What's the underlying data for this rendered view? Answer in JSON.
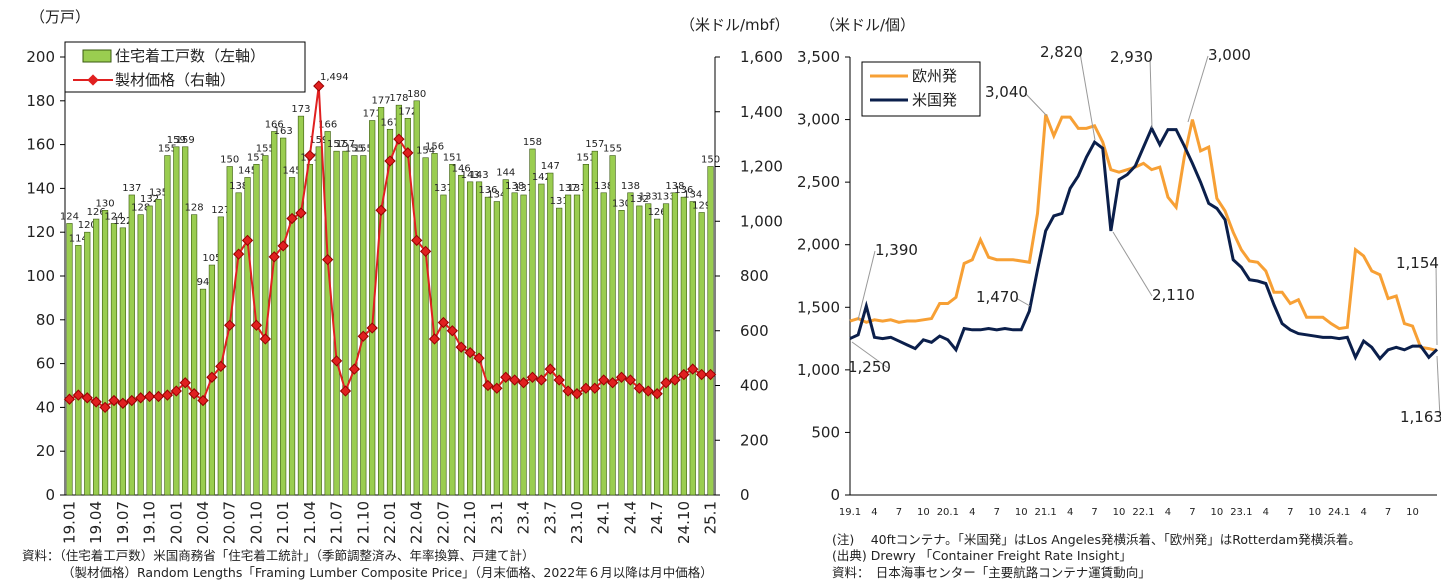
{
  "chart_data": [
    {
      "type": "bar",
      "y_label": "（万戸）",
      "y2_label": "（米ドル/mbf）",
      "categories": [
        "19.01",
        null,
        null,
        "19.04",
        null,
        null,
        "19.07",
        null,
        null,
        "19.10",
        null,
        null,
        "20.01",
        null,
        null,
        "20.04",
        null,
        null,
        "20.07",
        null,
        null,
        "20.10",
        null,
        null,
        "21.01",
        null,
        null,
        "21.04",
        null,
        null,
        "21.07",
        null,
        null,
        "21.10",
        null,
        null,
        "22.01",
        null,
        null,
        "22.04",
        null,
        null,
        "22.07",
        null,
        null,
        "22.10",
        null,
        null,
        "23.1",
        null,
        null,
        "23.4",
        null,
        null,
        "23.7",
        null,
        null,
        "23.10",
        null,
        null,
        "24.1",
        null,
        null,
        "24.4",
        null,
        null,
        "24.7",
        null,
        null,
        "24.10",
        null,
        null,
        "25.1"
      ],
      "series": [
        {
          "name": "住宅着工戸数（左軸）",
          "type": "bar",
          "color": "#9acd50",
          "data_labels": true,
          "values": [
            124,
            114,
            120,
            126,
            130,
            124,
            122,
            137,
            128,
            132,
            135,
            155,
            159,
            159,
            128,
            94,
            105,
            127,
            150,
            138,
            145,
            151,
            155,
            166,
            163,
            145,
            173,
            151,
            159,
            166,
            157,
            157,
            155,
            155,
            171,
            177,
            167,
            178,
            172,
            180,
            154,
            156,
            137,
            151,
            146,
            143,
            143,
            136,
            134,
            144,
            138,
            137,
            158,
            142,
            147,
            131,
            137,
            137,
            151,
            157,
            138,
            155,
            130,
            138,
            132,
            133,
            126,
            133,
            138,
            136,
            134,
            129,
            150
          ]
        },
        {
          "name": "製材価格（右軸）",
          "type": "line",
          "axis": "y2",
          "color": "#e02020",
          "values": [
            350,
            365,
            355,
            340,
            320,
            345,
            335,
            345,
            355,
            360,
            360,
            365,
            380,
            410,
            370,
            345,
            430,
            470,
            620,
            880,
            930,
            620,
            570,
            870,
            910,
            1010,
            1030,
            1240,
            1494,
            860,
            490,
            380,
            460,
            580,
            610,
            1040,
            1220,
            1300,
            1250,
            930,
            890,
            570,
            630,
            600,
            540,
            520,
            500,
            400,
            390,
            430,
            420,
            410,
            430,
            420,
            460,
            420,
            380,
            370,
            390,
            390,
            420,
            410,
            430,
            420,
            390,
            380,
            370,
            410,
            420,
            440,
            460,
            440,
            440
          ]
        }
      ],
      "ylim": [
        0,
        200
      ],
      "yticks": [
        0,
        20,
        40,
        60,
        80,
        100,
        120,
        140,
        160,
        180,
        200
      ],
      "y2lim": [
        0,
        1600
      ],
      "y2ticks": [
        0,
        200,
        400,
        600,
        800,
        {
          "value": 1000,
          "label": "1,000"
        },
        {
          "value": 1200,
          "label": "1,200"
        },
        {
          "value": 1400,
          "label": "1,400"
        },
        {
          "value": 1600,
          "label": "1,600"
        }
      ],
      "grid": false,
      "legend": "top-left",
      "annotations": [
        "1,494"
      ]
    },
    {
      "type": "line",
      "y_label": "（米ドル/個）",
      "categories": [
        "19.1",
        null,
        null,
        "4",
        null,
        null,
        "7",
        null,
        null,
        "10",
        null,
        null,
        "20.1",
        null,
        null,
        "4",
        null,
        null,
        "7",
        null,
        null,
        "10",
        null,
        null,
        "21.1",
        null,
        null,
        "4",
        null,
        null,
        "7",
        null,
        null,
        "10",
        null,
        null,
        "22.1",
        null,
        null,
        "4",
        null,
        null,
        "7",
        null,
        null,
        "10",
        null,
        null,
        "23.1",
        null,
        null,
        "4",
        null,
        null,
        "7",
        null,
        null,
        "10",
        null,
        null,
        "24.1",
        null,
        null,
        "4",
        null,
        null,
        "7",
        null,
        null,
        "10",
        null,
        null,
        null
      ],
      "series": [
        {
          "name": "欧州発",
          "color": "#f7a035",
          "values": [
            1390,
            1410,
            1380,
            1400,
            1390,
            1400,
            1380,
            1390,
            1390,
            1400,
            1410,
            1530,
            1530,
            1580,
            1850,
            1880,
            2040,
            1900,
            1880,
            1880,
            1880,
            1870,
            1860,
            2250,
            3040,
            2870,
            3020,
            3020,
            2930,
            2930,
            2950,
            2820,
            2600,
            2580,
            2600,
            2620,
            2650,
            2600,
            2620,
            2380,
            2300,
            2700,
            3000,
            2750,
            2780,
            2370,
            2270,
            2100,
            1960,
            1870,
            1860,
            1790,
            1620,
            1620,
            1530,
            1560,
            1420,
            1420,
            1420,
            1370,
            1330,
            1340,
            1960,
            1910,
            1790,
            1760,
            1570,
            1590,
            1370,
            1350,
            1180,
            1170,
            1154
          ]
        },
        {
          "name": "米国発",
          "color": "#0b1f4b",
          "values": [
            1250,
            1280,
            1510,
            1260,
            1250,
            1260,
            1230,
            1200,
            1170,
            1240,
            1220,
            1270,
            1240,
            1160,
            1330,
            1320,
            1320,
            1330,
            1320,
            1330,
            1320,
            1320,
            1470,
            1800,
            2110,
            2230,
            2250,
            2450,
            2550,
            2700,
            2820,
            2770,
            2110,
            2520,
            2560,
            2630,
            2780,
            2930,
            2800,
            2920,
            2920,
            2790,
            2650,
            2500,
            2330,
            2290,
            2200,
            1880,
            1820,
            1720,
            1710,
            1690,
            1520,
            1370,
            1320,
            1290,
            1280,
            1270,
            1260,
            1260,
            1250,
            1260,
            1100,
            1230,
            1180,
            1090,
            1160,
            1180,
            1160,
            1190,
            1190,
            1100,
            1163
          ]
        }
      ],
      "ylim": [
        0,
        3500
      ],
      "yticks": [
        0,
        500,
        {
          "value": 1000,
          "label": "1,000"
        },
        {
          "value": 1500,
          "label": "1,500"
        },
        {
          "value": 2000,
          "label": "2,000"
        },
        {
          "value": 2500,
          "label": "2,500"
        },
        {
          "value": 3000,
          "label": "3,000"
        },
        {
          "value": 3500,
          "label": "3,500"
        }
      ],
      "grid": false,
      "legend": "top-left",
      "annotations": [
        "1,390",
        "1,250",
        "3,040",
        "2,820",
        "2,930",
        "3,000",
        "1,470",
        "2,110",
        "1,154",
        "1,163"
      ]
    }
  ],
  "notes_left": [
    "資料：（住宅着工戸数）米国商務省「住宅着工統計」（季節調整済み、年率換算、戸建て計）",
    "（製材価格）Random Lengths「Framing Lumber Composite Price」（月末価格、2022年６月以降は月中価格）"
  ],
  "notes_right": [
    "(注)　 40ftコンテナ。「米国発」はLos Angeles発横浜着、「欧州発」はRotterdam発横浜着。",
    "(出典) Drewry 「Container Freight Rate Insight」",
    "資料：　日本海事センター「主要航路コンテナ運賃動向」"
  ]
}
